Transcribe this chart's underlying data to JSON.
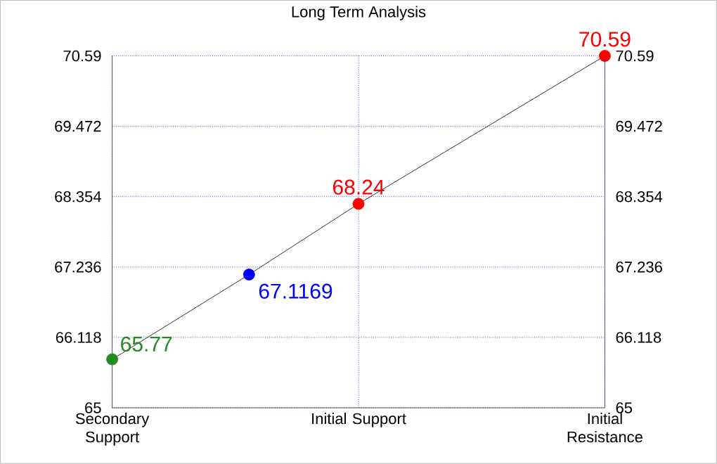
{
  "chart_data": {
    "type": "scatter",
    "title": "Long Term Analysis",
    "categories": [
      "Secondary Support",
      null,
      null,
      null,
      null,
      null,
      null,
      null,
      null,
      "Initial Support",
      null,
      null,
      null,
      null,
      null,
      null,
      null,
      null,
      "Initial Resistance"
    ],
    "ylim": [
      65,
      70.59
    ],
    "yticks": [
      65,
      66.118,
      67.236,
      68.354,
      69.472,
      70.59
    ],
    "y2lim": [
      65,
      70.59
    ],
    "y2ticks": [
      65,
      66.118,
      67.236,
      68.354,
      69.472,
      70.59
    ],
    "grid": true,
    "series": [
      {
        "type": "line",
        "marker": "none",
        "color": "#000000",
        "values": [
          65.77,
          null,
          null,
          null,
          null,
          67.1169,
          null,
          null,
          null,
          68.24,
          null,
          null,
          null,
          null,
          null,
          null,
          null,
          null,
          70.59
        ]
      },
      {
        "color": "#228b22",
        "marker": "circle",
        "values": [
          65.77,
          null,
          null,
          null,
          null,
          null,
          null,
          null,
          null,
          null,
          null,
          null,
          null,
          null,
          null,
          null,
          null,
          null,
          null
        ],
        "value_labels": [
          "65.77",
          null,
          null,
          null,
          null,
          null,
          null,
          null,
          null,
          null,
          null,
          null,
          null,
          null,
          null,
          null,
          null,
          null,
          null
        ]
      },
      {
        "color": "#0000ff",
        "marker": "circle",
        "values": [
          null,
          null,
          null,
          null,
          null,
          67.1169,
          null,
          null,
          null,
          null,
          null,
          null,
          null,
          null,
          null,
          null,
          null,
          null,
          null
        ],
        "value_labels": [
          null,
          null,
          null,
          null,
          null,
          "67.1169",
          null,
          null,
          null,
          null,
          null,
          null,
          null,
          null,
          null,
          null,
          null,
          null,
          null
        ]
      },
      {
        "color": "#ff0000",
        "marker": "circle",
        "values": [
          null,
          null,
          null,
          null,
          null,
          null,
          null,
          null,
          null,
          68.24,
          null,
          null,
          null,
          null,
          null,
          null,
          null,
          null,
          70.59
        ],
        "value_labels": [
          null,
          null,
          null,
          null,
          null,
          null,
          null,
          null,
          null,
          "68.24",
          null,
          null,
          null,
          null,
          null,
          null,
          null,
          null,
          "70.59"
        ]
      }
    ]
  }
}
